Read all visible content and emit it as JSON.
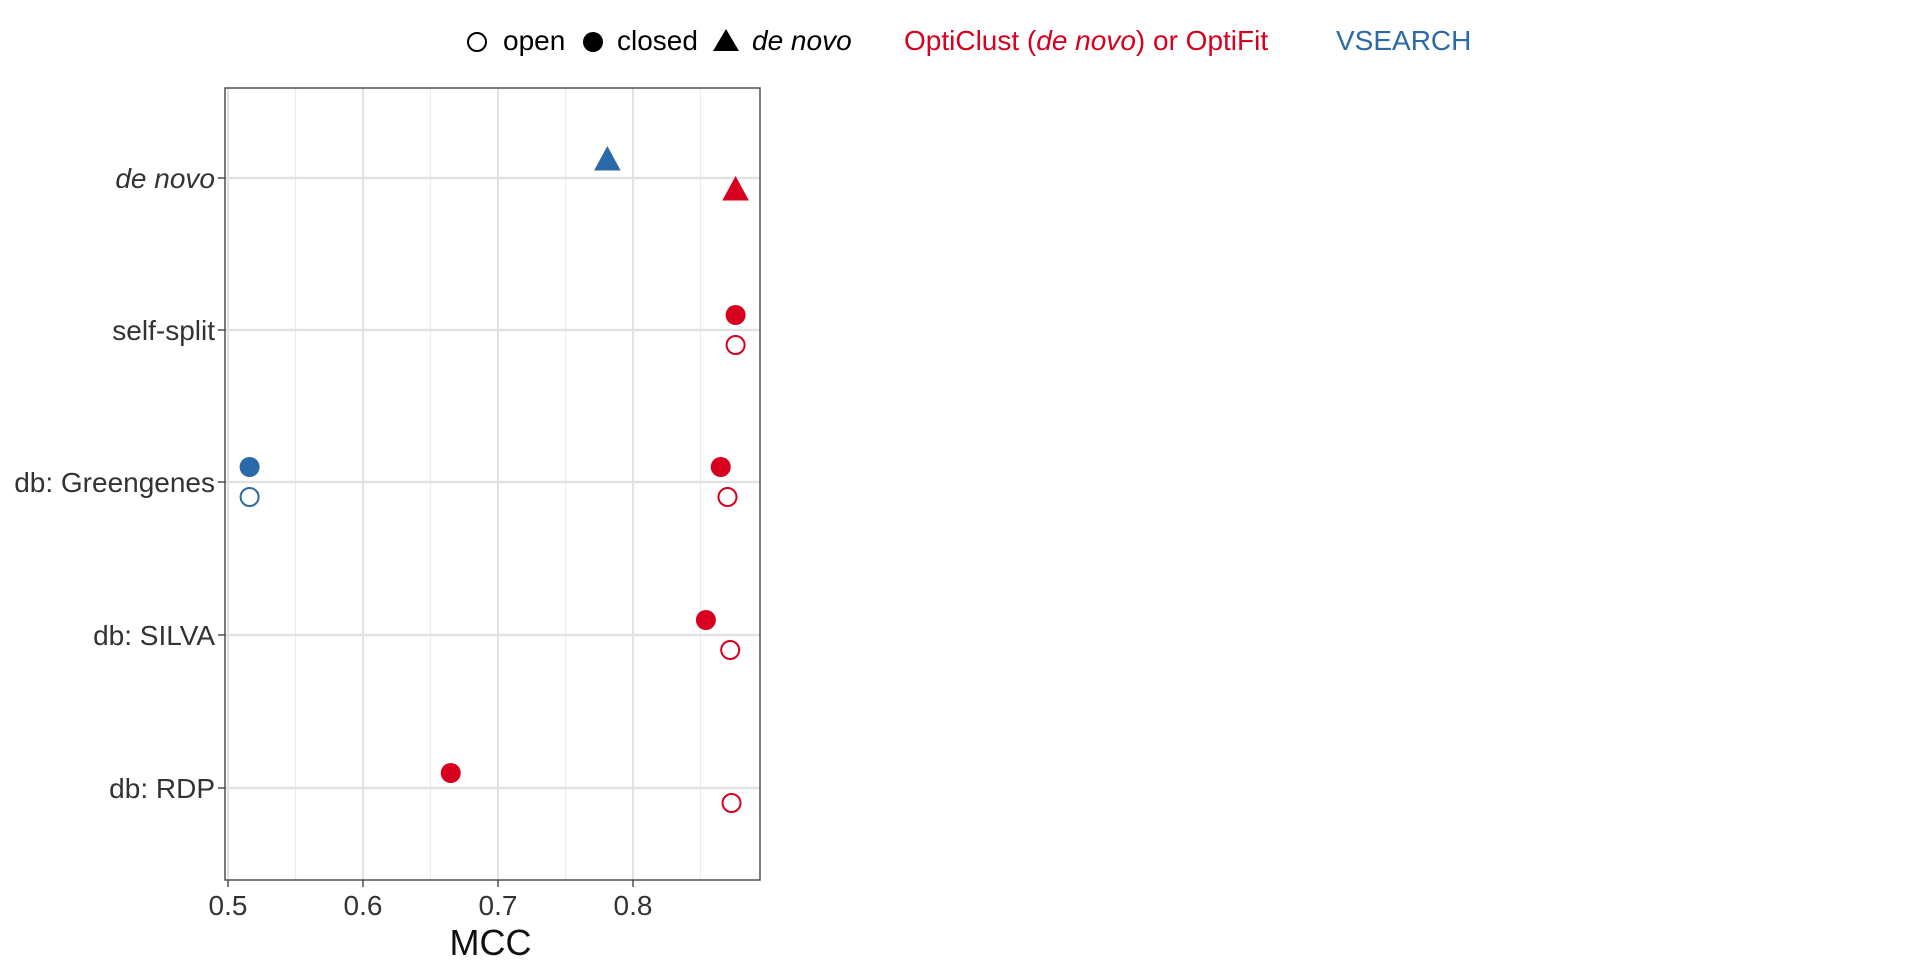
{
  "legend": {
    "shapes": [
      {
        "symbol": "open-circle",
        "label": "open"
      },
      {
        "symbol": "filled-circle",
        "label": "closed"
      },
      {
        "symbol": "filled-triangle",
        "label": "de novo"
      }
    ],
    "colors": [
      {
        "pre": "OptiClust (",
        "italic": "de novo",
        "post": ") or OptiFit",
        "color": "#d7001e"
      },
      {
        "pre": "VSEARCH",
        "italic": "",
        "post": "",
        "color": "#2b6aa8"
      }
    ]
  },
  "chart_data": {
    "type": "scatter",
    "xlabel": "MCC",
    "ylabel": "",
    "xlim": [
      0.5,
      0.895
    ],
    "xticks": [
      0.5,
      0.6,
      0.7,
      0.8
    ],
    "xtick_labels": [
      "0.5",
      "0.6",
      "0.7",
      "0.8"
    ],
    "categories": [
      "de novo",
      "self-split",
      "db: Greengenes",
      "db: SILVA",
      "db: RDP"
    ],
    "grid": true,
    "legend_position": "top",
    "series": [
      {
        "name": "OptiClust (de novo) or OptiFit",
        "color": "#d7001e",
        "points": [
          {
            "category": "de novo",
            "strategy": "de novo",
            "x": 0.876
          },
          {
            "category": "self-split",
            "strategy": "closed",
            "x": 0.876
          },
          {
            "category": "self-split",
            "strategy": "open",
            "x": 0.876
          },
          {
            "category": "db: Greengenes",
            "strategy": "closed",
            "x": 0.865
          },
          {
            "category": "db: Greengenes",
            "strategy": "open",
            "x": 0.87
          },
          {
            "category": "db: SILVA",
            "strategy": "closed",
            "x": 0.854
          },
          {
            "category": "db: SILVA",
            "strategy": "open",
            "x": 0.872
          },
          {
            "category": "db: RDP",
            "strategy": "closed",
            "x": 0.665
          },
          {
            "category": "db: RDP",
            "strategy": "open",
            "x": 0.873
          }
        ]
      },
      {
        "name": "VSEARCH",
        "color": "#2b6aa8",
        "points": [
          {
            "category": "de novo",
            "strategy": "de novo",
            "x": 0.781
          },
          {
            "category": "db: Greengenes",
            "strategy": "closed",
            "x": 0.516
          },
          {
            "category": "db: Greengenes",
            "strategy": "open",
            "x": 0.516
          }
        ]
      }
    ]
  }
}
